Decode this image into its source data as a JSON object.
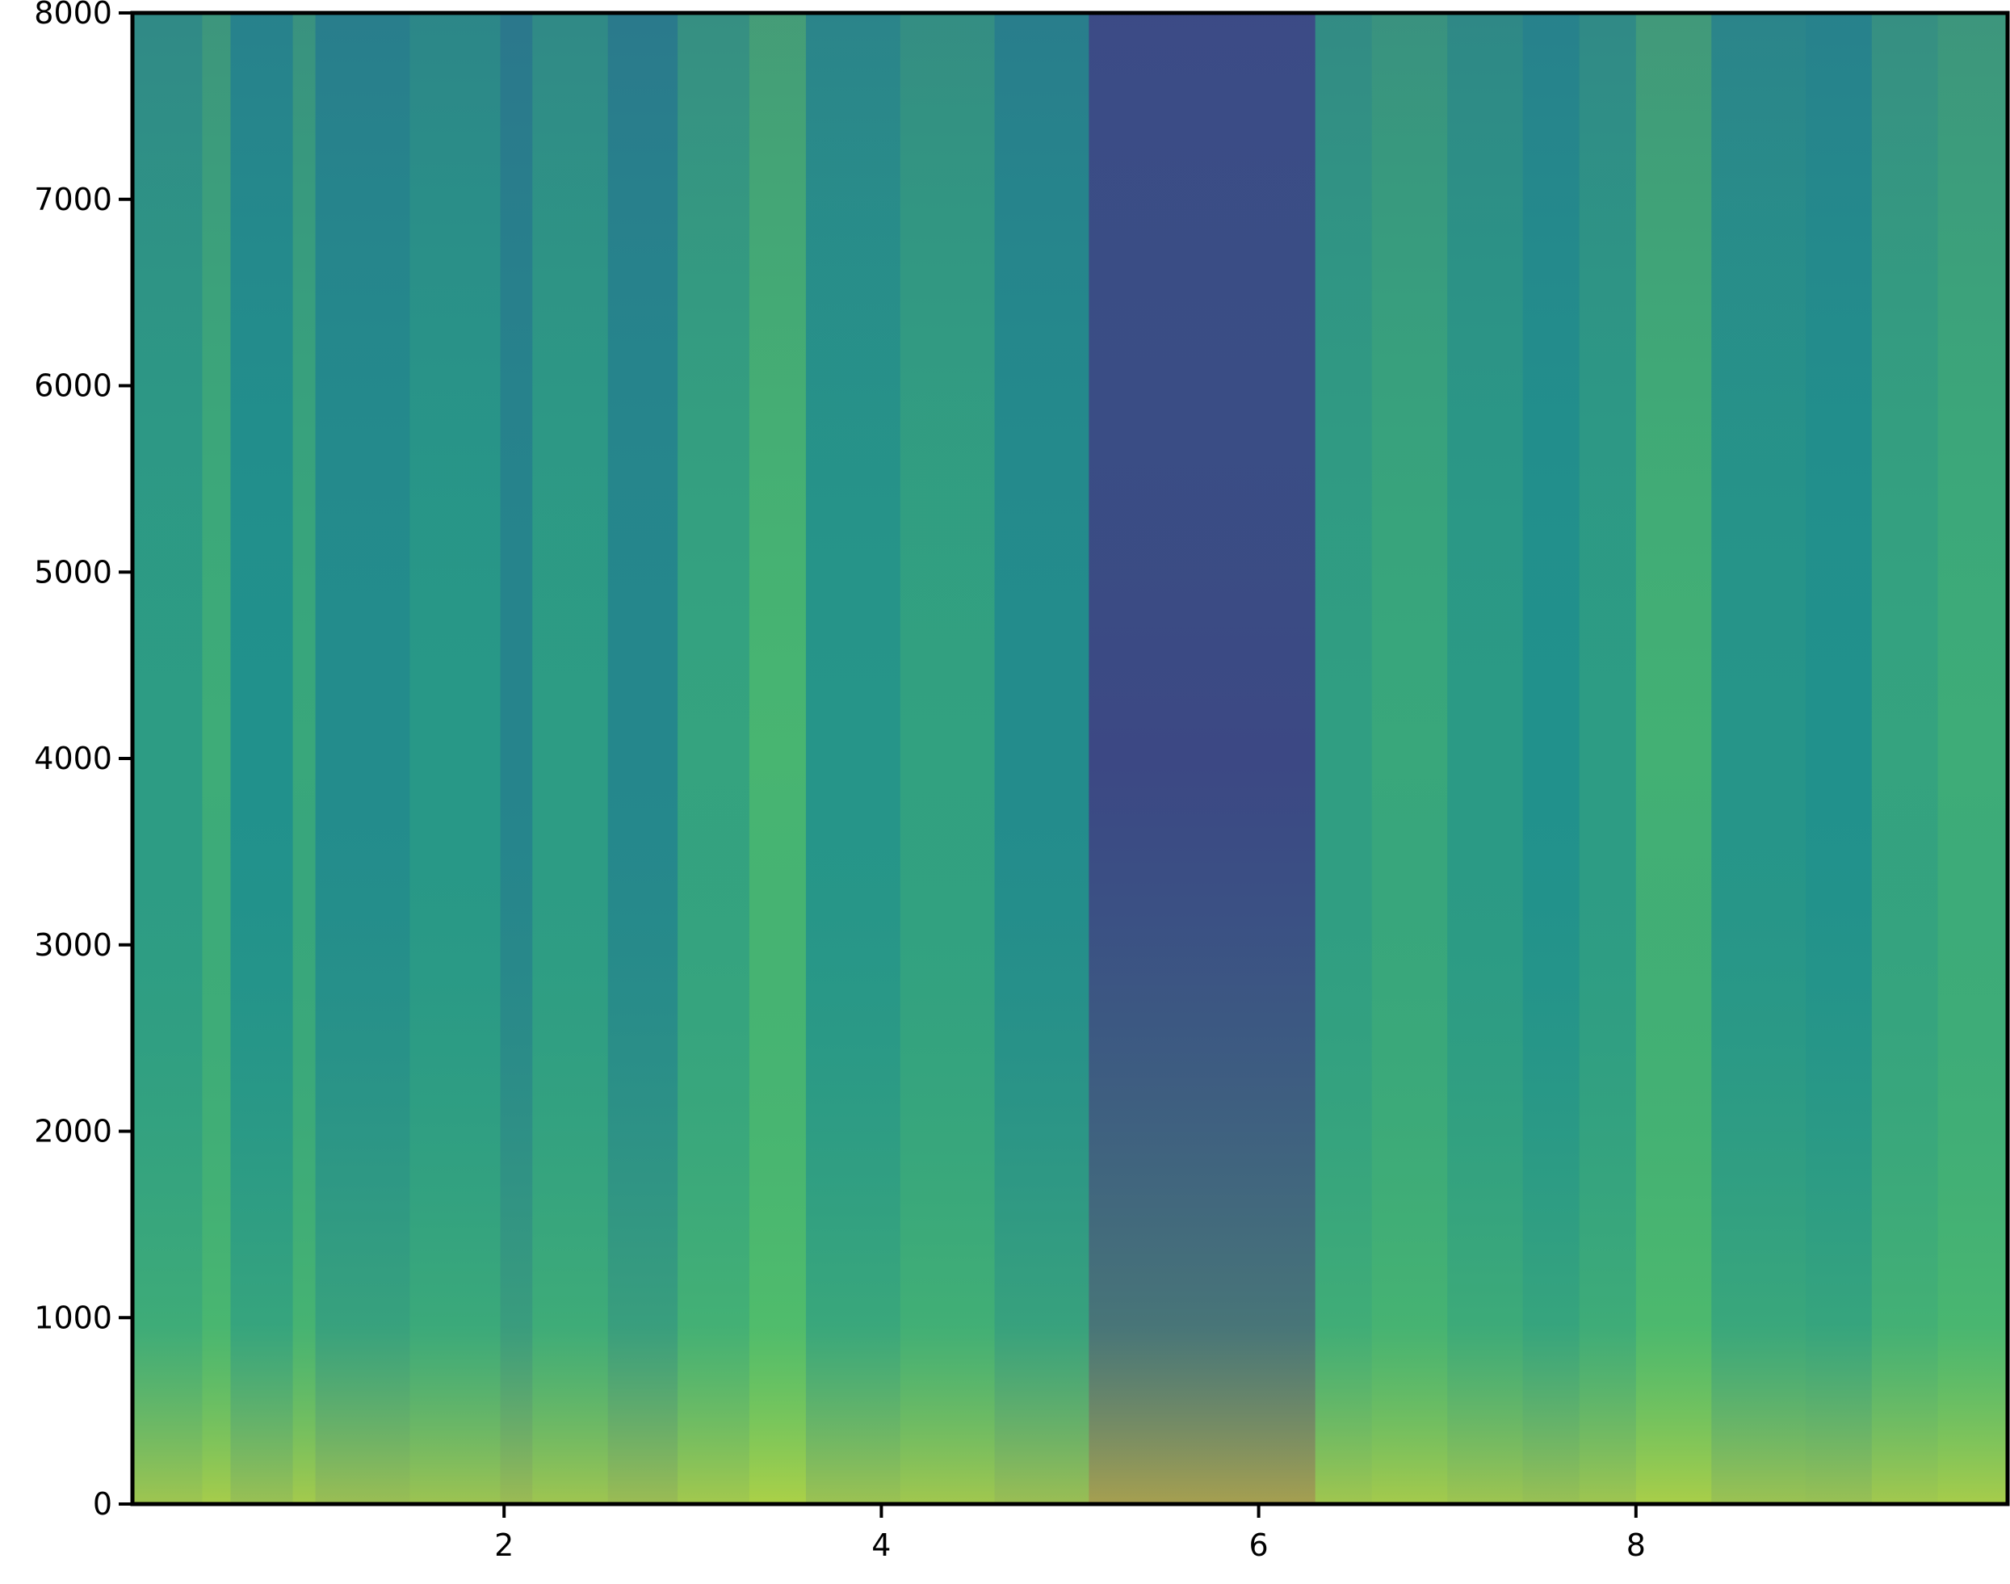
{
  "chart_data": {
    "type": "heatmap",
    "title": "",
    "xlabel": "",
    "ylabel": "",
    "xlim": [
      0.03,
      9.97
    ],
    "ylim": [
      0,
      8000
    ],
    "x_ticks": [
      2,
      4,
      6,
      8
    ],
    "x_tick_labels": [
      "2",
      "4",
      "6",
      "8"
    ],
    "y_ticks": [
      0,
      1000,
      2000,
      3000,
      4000,
      5000,
      6000,
      7000,
      8000
    ],
    "y_tick_labels": [
      "0",
      "1000",
      "2000",
      "3000",
      "4000",
      "5000",
      "6000",
      "7000",
      "8000"
    ],
    "colormap": [
      "#440154",
      "#3b528b",
      "#21918c",
      "#5ec962",
      "#fde725"
    ],
    "grid": false,
    "segments": [
      {
        "x_start": 0.03,
        "x_end": 0.4,
        "level": 0.55
      },
      {
        "x_start": 0.4,
        "x_end": 0.55,
        "level": 0.62
      },
      {
        "x_start": 0.55,
        "x_end": 0.88,
        "level": 0.5
      },
      {
        "x_start": 0.88,
        "x_end": 1.0,
        "level": 0.6
      },
      {
        "x_start": 1.0,
        "x_end": 1.5,
        "level": 0.48
      },
      {
        "x_start": 1.5,
        "x_end": 1.98,
        "level": 0.53
      },
      {
        "x_start": 1.98,
        "x_end": 2.15,
        "level": 0.45
      },
      {
        "x_start": 2.15,
        "x_end": 2.55,
        "level": 0.55
      },
      {
        "x_start": 2.55,
        "x_end": 2.92,
        "level": 0.46
      },
      {
        "x_start": 2.92,
        "x_end": 3.3,
        "level": 0.58
      },
      {
        "x_start": 3.3,
        "x_end": 3.6,
        "level": 0.66
      },
      {
        "x_start": 3.6,
        "x_end": 4.1,
        "level": 0.52
      },
      {
        "x_start": 4.1,
        "x_end": 4.6,
        "level": 0.57
      },
      {
        "x_start": 4.6,
        "x_end": 5.1,
        "level": 0.48
      },
      {
        "x_start": 5.1,
        "x_end": 6.3,
        "level": 0.22
      },
      {
        "x_start": 6.3,
        "x_end": 6.6,
        "level": 0.56
      },
      {
        "x_start": 6.6,
        "x_end": 7.0,
        "level": 0.6
      },
      {
        "x_start": 7.0,
        "x_end": 7.4,
        "level": 0.54
      },
      {
        "x_start": 7.4,
        "x_end": 7.7,
        "level": 0.5
      },
      {
        "x_start": 7.7,
        "x_end": 8.0,
        "level": 0.55
      },
      {
        "x_start": 8.0,
        "x_end": 8.4,
        "level": 0.64
      },
      {
        "x_start": 8.4,
        "x_end": 8.9,
        "level": 0.52
      },
      {
        "x_start": 8.9,
        "x_end": 9.25,
        "level": 0.5
      },
      {
        "x_start": 9.25,
        "x_end": 9.6,
        "level": 0.58
      },
      {
        "x_start": 9.6,
        "x_end": 9.97,
        "level": 0.62
      }
    ]
  }
}
